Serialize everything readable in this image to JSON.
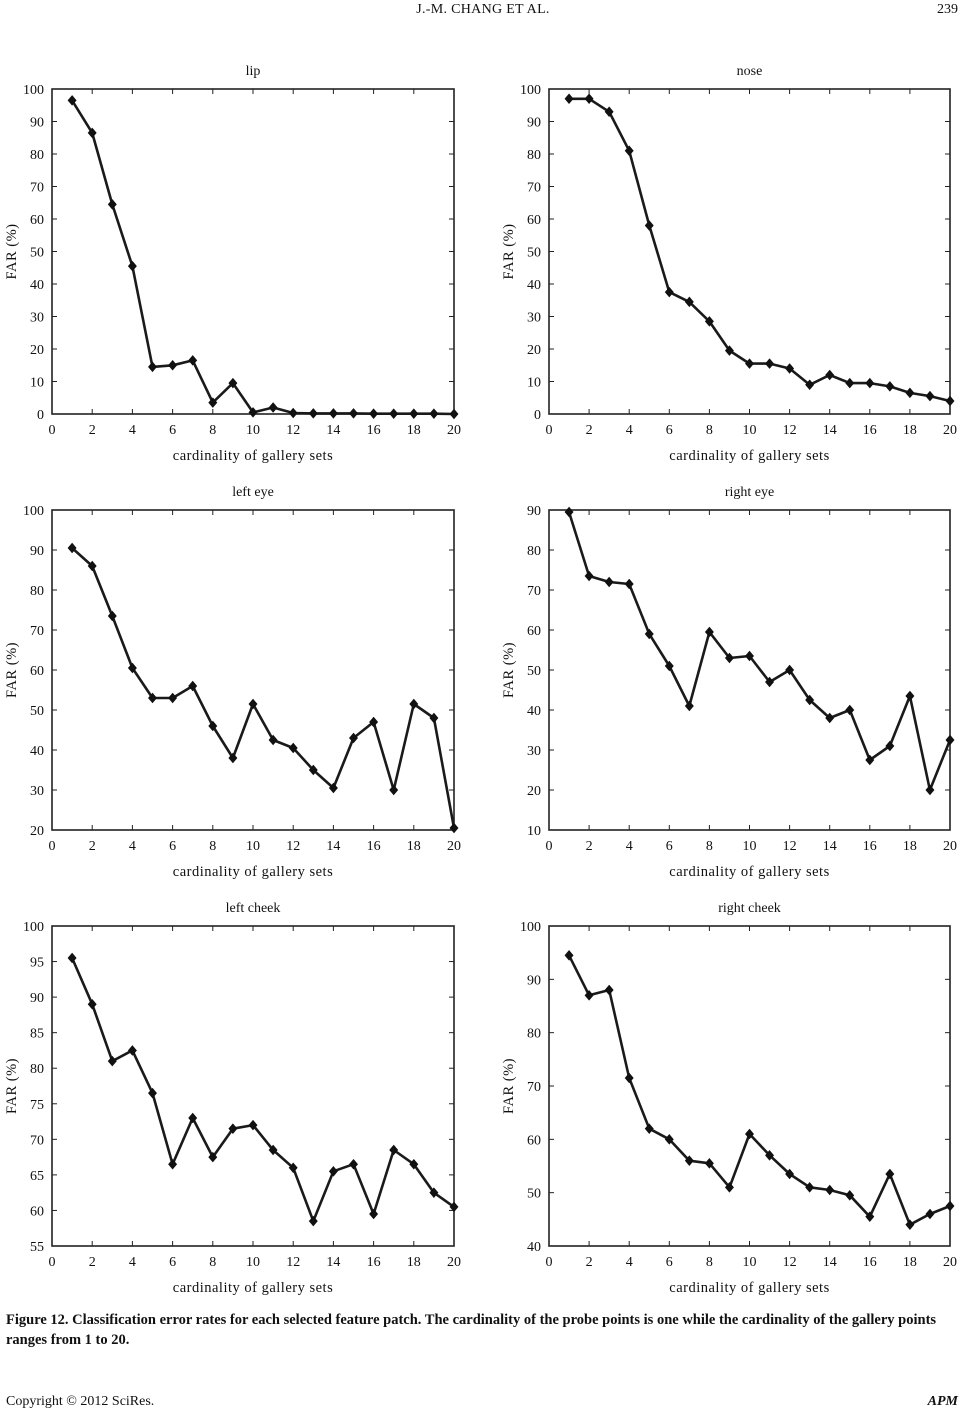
{
  "header": {
    "running_title": "J.-M. CHANG    ET    AL.",
    "page_number": "239"
  },
  "chart_data": [
    {
      "type": "line",
      "title": "lip",
      "xlabel": "cardinality of gallery sets",
      "ylabel": "FAR (%)",
      "xlim": [
        0,
        20
      ],
      "ylim": [
        0,
        100
      ],
      "xticks": [
        0,
        2,
        4,
        6,
        8,
        10,
        12,
        14,
        16,
        18,
        20
      ],
      "yticks": [
        0,
        10,
        20,
        30,
        40,
        50,
        60,
        70,
        80,
        90,
        100
      ],
      "x": [
        1,
        2,
        3,
        4,
        5,
        6,
        7,
        8,
        9,
        10,
        11,
        12,
        13,
        14,
        15,
        16,
        17,
        18,
        19,
        20
      ],
      "values": [
        96.5,
        86.5,
        64.5,
        45.5,
        14.5,
        15,
        16.5,
        3.5,
        9.5,
        0.5,
        2,
        0.3,
        0.2,
        0.2,
        0.2,
        0.1,
        0.1,
        0.1,
        0.1,
        0
      ]
    },
    {
      "type": "line",
      "title": "nose",
      "xlabel": "cardinality of gallery sets",
      "ylabel": "FAR (%)",
      "xlim": [
        0,
        20
      ],
      "ylim": [
        0,
        100
      ],
      "xticks": [
        0,
        2,
        4,
        6,
        8,
        10,
        12,
        14,
        16,
        18,
        20
      ],
      "yticks": [
        0,
        10,
        20,
        30,
        40,
        50,
        60,
        70,
        80,
        90,
        100
      ],
      "x": [
        1,
        2,
        3,
        4,
        5,
        6,
        7,
        8,
        9,
        10,
        11,
        12,
        13,
        14,
        15,
        16,
        17,
        18,
        19,
        20
      ],
      "values": [
        97,
        97,
        93,
        81,
        58,
        37.5,
        34.5,
        28.5,
        19.5,
        15.5,
        15.5,
        14,
        9,
        12,
        9.5,
        9.5,
        8.5,
        6.5,
        5.5,
        4
      ]
    },
    {
      "type": "line",
      "title": "left eye",
      "xlabel": "cardinality of gallery sets",
      "ylabel": "FAR (%)",
      "xlim": [
        0,
        20
      ],
      "ylim": [
        20,
        100
      ],
      "xticks": [
        0,
        2,
        4,
        6,
        8,
        10,
        12,
        14,
        16,
        18,
        20
      ],
      "yticks": [
        20,
        30,
        40,
        50,
        60,
        70,
        80,
        90,
        100
      ],
      "x": [
        1,
        2,
        3,
        4,
        5,
        6,
        7,
        8,
        9,
        10,
        11,
        12,
        13,
        14,
        15,
        16,
        17,
        18,
        19,
        20
      ],
      "values": [
        90.5,
        86,
        73.5,
        60.5,
        53,
        53,
        56,
        46,
        38,
        51.5,
        42.5,
        40.5,
        35,
        30.5,
        43,
        47,
        30,
        51.5,
        48,
        20.5
      ]
    },
    {
      "type": "line",
      "title": "right eye",
      "xlabel": "cardinality of gallery sets",
      "ylabel": "FAR (%)",
      "xlim": [
        0,
        20
      ],
      "ylim": [
        10,
        90
      ],
      "xticks": [
        0,
        2,
        4,
        6,
        8,
        10,
        12,
        14,
        16,
        18,
        20
      ],
      "yticks": [
        10,
        20,
        30,
        40,
        50,
        60,
        70,
        80,
        90
      ],
      "x": [
        1,
        2,
        3,
        4,
        5,
        6,
        7,
        8,
        9,
        10,
        11,
        12,
        13,
        14,
        15,
        16,
        17,
        18,
        19,
        20
      ],
      "values": [
        89.5,
        73.5,
        72,
        71.5,
        59,
        51,
        41,
        59.5,
        53,
        53.5,
        47,
        50,
        42.5,
        38,
        40,
        27.5,
        31,
        43.5,
        20,
        32.5
      ]
    },
    {
      "type": "line",
      "title": "left cheek",
      "xlabel": "cardinality of gallery sets",
      "ylabel": "FAR (%)",
      "xlim": [
        0,
        20
      ],
      "ylim": [
        55,
        100
      ],
      "xticks": [
        0,
        2,
        4,
        6,
        8,
        10,
        12,
        14,
        16,
        18,
        20
      ],
      "yticks": [
        55,
        60,
        65,
        70,
        75,
        80,
        85,
        90,
        95,
        100
      ],
      "x": [
        1,
        2,
        3,
        4,
        5,
        6,
        7,
        8,
        9,
        10,
        11,
        12,
        13,
        14,
        15,
        16,
        17,
        18,
        19,
        20
      ],
      "values": [
        95.5,
        89,
        81,
        82.5,
        76.5,
        66.5,
        73,
        67.5,
        71.5,
        72,
        68.5,
        66,
        58.5,
        65.5,
        66.5,
        59.5,
        68.5,
        66.5,
        62.5,
        60.5
      ]
    },
    {
      "type": "line",
      "title": "right cheek",
      "xlabel": "cardinality of gallery sets",
      "ylabel": "FAR (%)",
      "xlim": [
        0,
        20
      ],
      "ylim": [
        40,
        100
      ],
      "xticks": [
        0,
        2,
        4,
        6,
        8,
        10,
        12,
        14,
        16,
        18,
        20
      ],
      "yticks": [
        40,
        50,
        60,
        70,
        80,
        90,
        100
      ],
      "x": [
        1,
        2,
        3,
        4,
        5,
        6,
        7,
        8,
        9,
        10,
        11,
        12,
        13,
        14,
        15,
        16,
        17,
        18,
        19,
        20
      ],
      "values": [
        94.5,
        87,
        88,
        71.5,
        62,
        60,
        56,
        55.5,
        51,
        61,
        57,
        53.5,
        51,
        50.5,
        49.5,
        45.5,
        53.5,
        44,
        46,
        47.5
      ]
    }
  ],
  "caption": "Figure 12. Classification error rates for each selected feature patch. The cardinality of the probe points is one while the cardinality of the gallery points ranges from 1 to 20.",
  "footer": {
    "copyright": "Copyright © 2012 SciRes.",
    "journal": "APM"
  }
}
